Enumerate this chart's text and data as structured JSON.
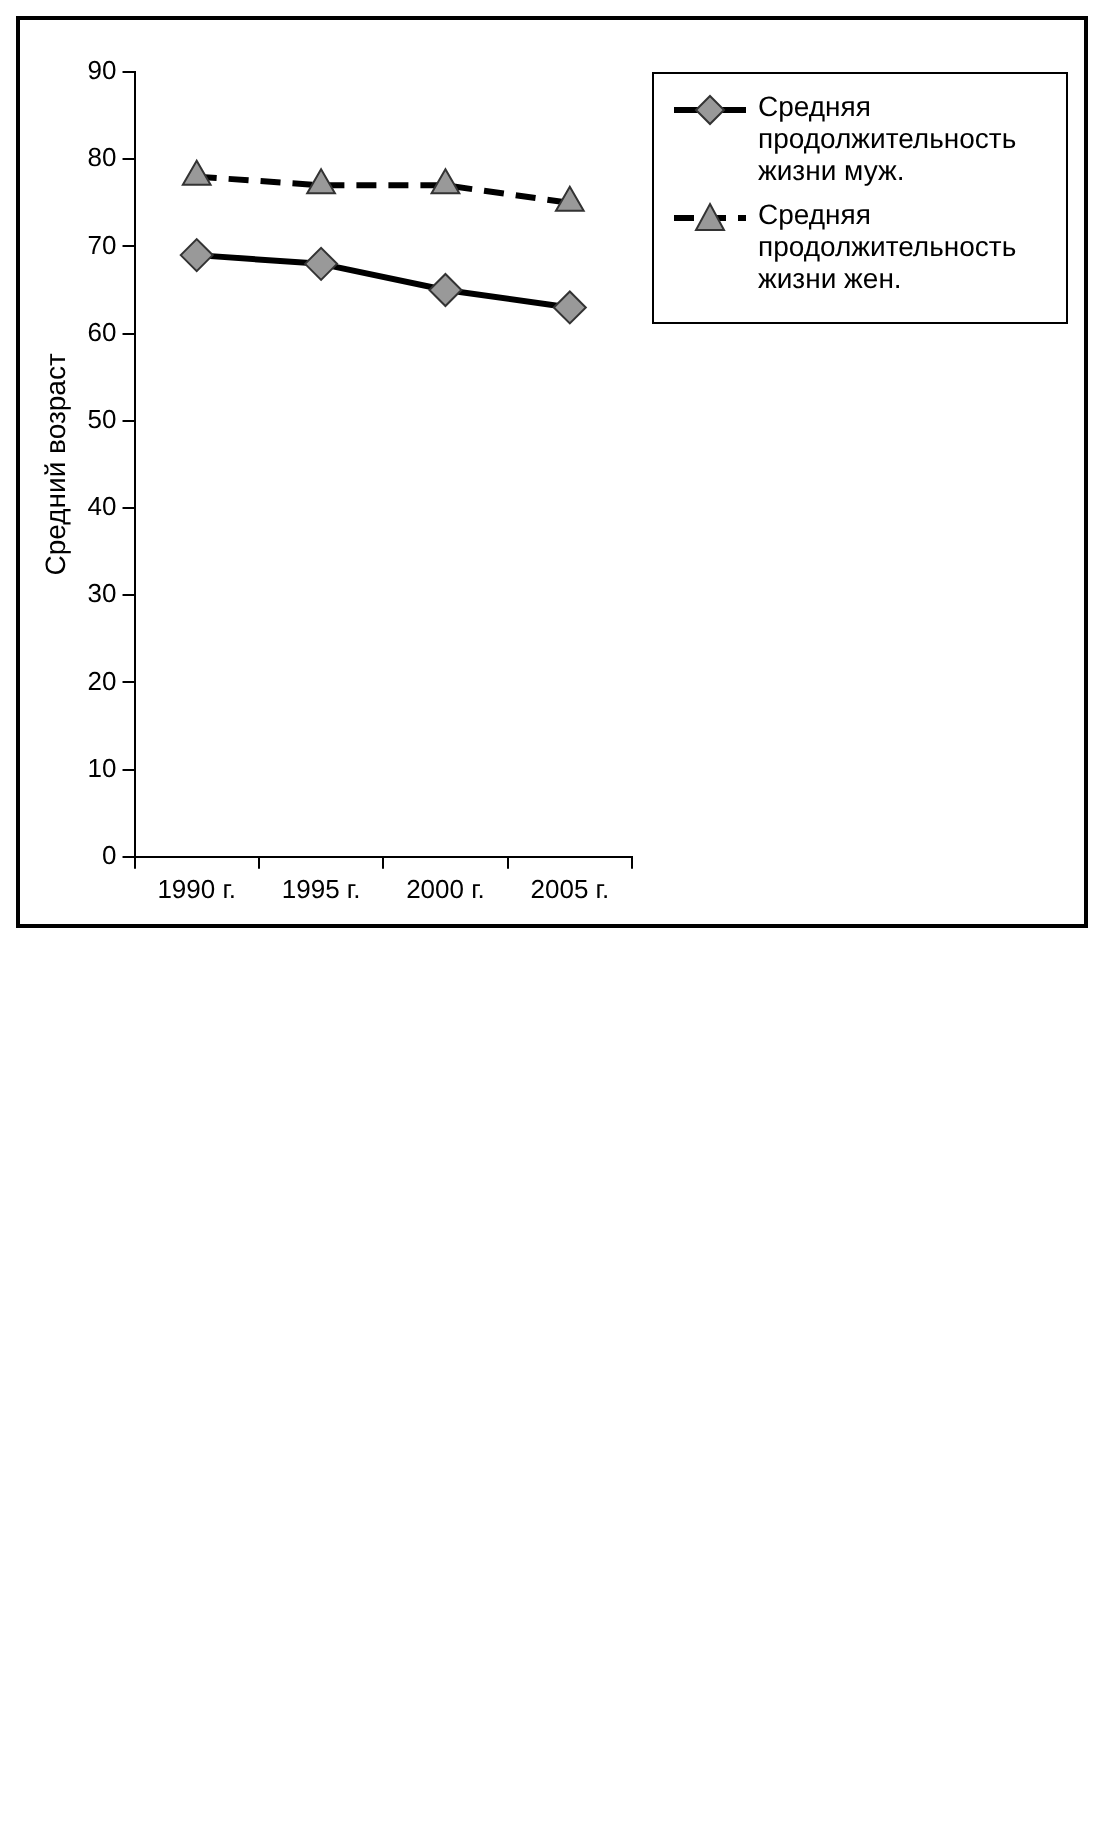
{
  "chart_data": {
    "type": "line",
    "ylabel": "Средний возраст",
    "categories": [
      "1990 г.",
      "1995 г.",
      "2000 г.",
      "2005 г."
    ],
    "series": [
      {
        "name": "Средняя продолжительность жизни муж.",
        "color": "#000000",
        "values": [
          69,
          68,
          65,
          63
        ],
        "marker": "diamond",
        "line_style": "solid"
      },
      {
        "name": "Средняя продолжительность жизни жен.",
        "color": "#000000",
        "values": [
          78,
          77,
          77,
          75
        ],
        "marker": "triangle",
        "line_style": "dashed"
      }
    ],
    "ylim": [
      0,
      90
    ],
    "yticks": [
      0,
      10,
      20,
      30,
      40,
      50,
      60,
      70,
      80,
      90
    ],
    "grid": false,
    "legend": "right"
  }
}
